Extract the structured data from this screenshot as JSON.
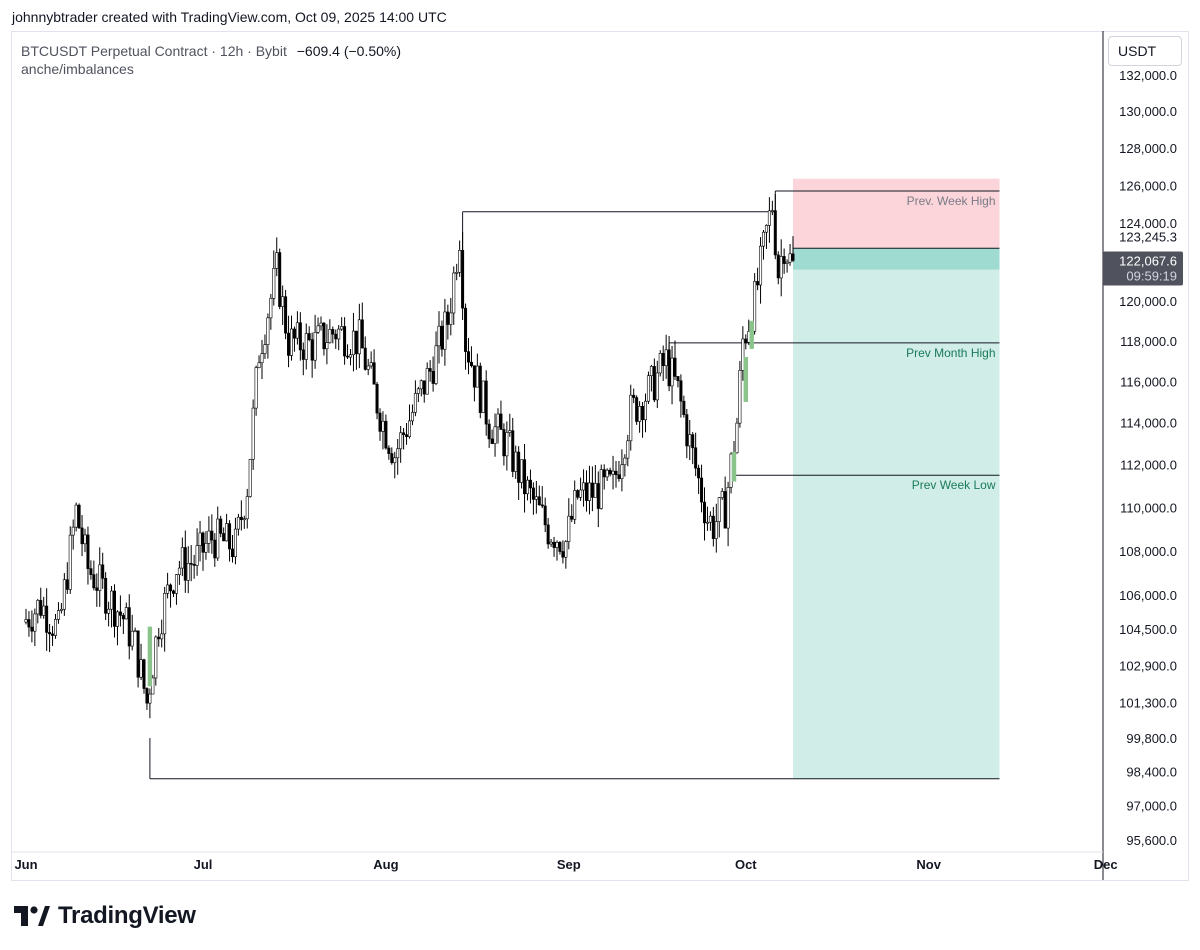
{
  "header": {
    "caption": "johnnybtrader created with TradingView.com, Oct 09, 2025 14:00 UTC"
  },
  "legend": {
    "symbol": "BTCUSDT Perpetual Contract · 12h · Bybit",
    "change": "−609.4 (−0.50%)",
    "indicator": "anche/imbalances"
  },
  "price_scale": {
    "currency": "USDT"
  },
  "brand": {
    "name": "TradingView"
  },
  "colors": {
    "candle": "#000000",
    "imbalance_fill": "#8bc48a",
    "stop_zone": "#fbd5da",
    "target_zone": "#d0ede7",
    "entry_band": "#9fdbd1",
    "level_line": "#131722",
    "level_label_gray": "#787b86",
    "level_label_green": "#1b7a5a",
    "last_price_bg": "#50535e"
  },
  "chart_data": {
    "type": "candlestick",
    "timeframe": "12h",
    "y_axis": {
      "scale": "log",
      "ylim": [
        95000,
        133500
      ],
      "ticks": [
        "132,000.0",
        "130,000.0",
        "128,000.0",
        "126,000.0",
        "124,000.0",
        "120,000.0",
        "118,000.0",
        "116,000.0",
        "114,000.0",
        "112,000.0",
        "110,000.0",
        "108,000.0",
        "106,000.0",
        "104,500.0",
        "102,900.0",
        "101,300.0",
        "99,800.0",
        "98,400.0",
        "97,000.0",
        "95,600.0"
      ]
    },
    "x_axis": {
      "ticks": [
        "Jun",
        "Jul",
        "Aug",
        "Sep",
        "Oct",
        "Nov",
        "Dec"
      ]
    },
    "price_path": [
      [
        "2025-06-01",
        104800
      ],
      [
        "2025-06-04",
        105600
      ],
      [
        "2025-06-07",
        104400
      ],
      [
        "2025-06-10",
        109800
      ],
      [
        "2025-06-12",
        107200
      ],
      [
        "2025-06-15",
        106100
      ],
      [
        "2025-06-18",
        105000
      ],
      [
        "2025-06-20",
        103800
      ],
      [
        "2025-06-22",
        101300
      ],
      [
        "2025-06-24",
        104800
      ],
      [
        "2025-06-27",
        107300
      ],
      [
        "2025-06-30",
        107500
      ],
      [
        "2025-07-03",
        108600
      ],
      [
        "2025-07-07",
        108200
      ],
      [
        "2025-07-09",
        111000
      ],
      [
        "2025-07-11",
        117500
      ],
      [
        "2025-07-14",
        121500
      ],
      [
        "2025-07-16",
        118000
      ],
      [
        "2025-07-20",
        117800
      ],
      [
        "2025-07-24",
        118500
      ],
      [
        "2025-07-28",
        118000
      ],
      [
        "2025-08-01",
        114000
      ],
      [
        "2025-08-03",
        112500
      ],
      [
        "2025-08-06",
        114500
      ],
      [
        "2025-08-09",
        116500
      ],
      [
        "2025-08-12",
        119000
      ],
      [
        "2025-08-14",
        123500
      ],
      [
        "2025-08-15",
        118000
      ],
      [
        "2025-08-19",
        114000
      ],
      [
        "2025-08-22",
        113000
      ],
      [
        "2025-08-25",
        111000
      ],
      [
        "2025-08-29",
        109000
      ],
      [
        "2025-09-01",
        108400
      ],
      [
        "2025-09-03",
        110500
      ],
      [
        "2025-09-06",
        110700
      ],
      [
        "2025-09-09",
        111000
      ],
      [
        "2025-09-12",
        114500
      ],
      [
        "2025-09-15",
        115500
      ],
      [
        "2025-09-18",
        117000
      ],
      [
        "2025-09-20",
        115500
      ],
      [
        "2025-09-22",
        113000
      ],
      [
        "2025-09-25",
        109500
      ],
      [
        "2025-09-26",
        109200
      ],
      [
        "2025-09-28",
        110000
      ],
      [
        "2025-09-30",
        114000
      ],
      [
        "2025-10-01",
        118000
      ],
      [
        "2025-10-03",
        120000
      ],
      [
        "2025-10-05",
        123500
      ],
      [
        "2025-10-06",
        125000
      ],
      [
        "2025-10-07",
        121500
      ],
      [
        "2025-10-08",
        123000
      ],
      [
        "2025-10-09",
        122067.6
      ]
    ],
    "imbalance_candles": [
      [
        "2025-06-22",
        102000,
        104600
      ],
      [
        "2025-09-29",
        111200,
        112600
      ],
      [
        "2025-10-01",
        115000,
        117200
      ],
      [
        "2025-10-02",
        117600,
        119000
      ]
    ],
    "levels": [
      {
        "label": "Prev. Week High",
        "price": 125700,
        "start": "2025-10-06",
        "end": "2025-11-13",
        "label_color": "gray"
      },
      {
        "label": "",
        "price": 124600,
        "start": "2025-08-14",
        "end": "2025-10-06",
        "label_color": "gray"
      },
      {
        "label": "Prev Month High",
        "price": 117900,
        "start": "2025-09-18",
        "end": "2025-11-13",
        "label_color": "green"
      },
      {
        "label": "Prev Week Low",
        "price": 111500,
        "start": "2025-09-29",
        "end": "2025-11-13",
        "label_color": "green"
      },
      {
        "label": "",
        "price": 98100,
        "start": "2025-06-22",
        "end": "2025-11-13",
        "label_color": "gray"
      }
    ],
    "position": {
      "start": "2025-10-09",
      "end": "2025-11-13",
      "entry": 122700,
      "stop": 126350,
      "target": 98100
    },
    "price_labels": [
      {
        "text": "123,245.3",
        "price": 123245.3,
        "style": "plain"
      },
      {
        "text": "122,067.6",
        "price": 122067.6,
        "style": "last",
        "sub": "09:59:19"
      }
    ]
  }
}
